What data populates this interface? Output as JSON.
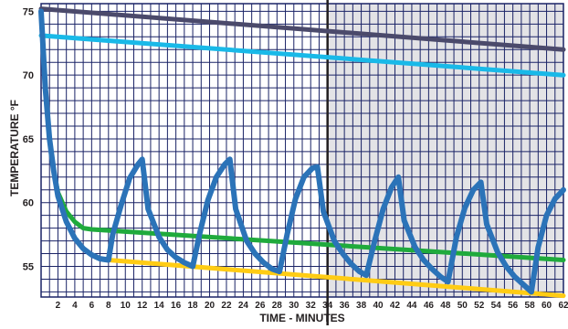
{
  "chart_data": {
    "type": "line",
    "title": "",
    "xlabel": "TIME - MINUTES",
    "ylabel": "TEMPERATURE °F",
    "xlim": [
      0,
      62
    ],
    "ylim": [
      52.6,
      75.6
    ],
    "x_ticks": [
      2,
      4,
      6,
      8,
      10,
      12,
      14,
      16,
      18,
      20,
      22,
      24,
      26,
      28,
      30,
      32,
      34,
      36,
      38,
      40,
      42,
      44,
      46,
      48,
      50,
      52,
      54,
      56,
      58,
      60,
      62
    ],
    "y_ticks": [
      55,
      60,
      65,
      70,
      75
    ],
    "grid": true,
    "shaded_region": {
      "x_from": 34,
      "x_to": 62,
      "color": "#e3e3e6"
    },
    "vertical_line_x": 34,
    "series": [
      {
        "color": "#4b4a6b",
        "x": [
          0,
          62
        ],
        "y": [
          75.2,
          72.0
        ]
      },
      {
        "color": "#19b9e8",
        "x": [
          0,
          62
        ],
        "y": [
          73.1,
          70.0
        ]
      },
      {
        "color": "#ffcc14",
        "x": [
          0,
          0.5,
          1,
          1.5,
          2,
          3,
          4,
          5,
          6,
          7,
          8,
          62
        ],
        "y": [
          75,
          69,
          65,
          62.5,
          60.5,
          58.5,
          57.2,
          56.4,
          55.9,
          55.6,
          55.5,
          52.7
        ]
      },
      {
        "color": "#1faa3c",
        "x": [
          0,
          0.5,
          1,
          1.5,
          2,
          3,
          4,
          5,
          6,
          62
        ],
        "y": [
          75,
          69,
          65,
          62.5,
          60.8,
          59.3,
          58.5,
          58.0,
          57.9,
          55.5
        ]
      },
      {
        "color": "#2b73b8",
        "x": [
          0,
          0.5,
          1,
          1.5,
          2,
          3,
          4,
          5,
          6,
          7,
          8,
          8.5,
          9.5,
          10.5,
          11.5,
          12,
          12.7,
          14,
          15,
          16,
          17,
          18,
          18.8,
          19.8,
          20.8,
          21.8,
          22.4,
          23.1,
          24.4,
          25.4,
          26.4,
          27.4,
          28.3,
          29.2,
          30.2,
          31.2,
          32.2,
          32.8,
          33.5,
          34.8,
          35.8,
          36.8,
          37.8,
          38.6,
          39.6,
          40.6,
          41.6,
          42.4,
          43.1,
          44.4,
          45.4,
          46.4,
          47.4,
          48.3,
          49.3,
          50.3,
          51.3,
          52.2,
          52.9,
          54.2,
          55.2,
          56.2,
          57.2,
          58.2,
          59,
          60,
          61,
          62
        ],
        "y": [
          75,
          69,
          65,
          62.5,
          60.5,
          58.5,
          57.2,
          56.4,
          55.9,
          55.6,
          55.5,
          57.5,
          59.8,
          61.9,
          63.0,
          63.4,
          59.5,
          57.3,
          56.3,
          55.7,
          55.3,
          55.0,
          57.5,
          60.2,
          62.0,
          63.0,
          63.4,
          59.5,
          57.0,
          56.0,
          55.3,
          54.8,
          54.6,
          57.5,
          60.3,
          62.0,
          62.7,
          62.8,
          59.3,
          57.0,
          56.0,
          55.2,
          54.6,
          54.3,
          57.0,
          59.5,
          61.2,
          62.0,
          58.6,
          56.5,
          55.5,
          54.8,
          54.2,
          53.8,
          57.3,
          59.6,
          61.0,
          61.6,
          58.3,
          56.1,
          55.0,
          54.2,
          53.6,
          53.0,
          56.5,
          59.0,
          60.3,
          61.0
        ]
      }
    ]
  }
}
